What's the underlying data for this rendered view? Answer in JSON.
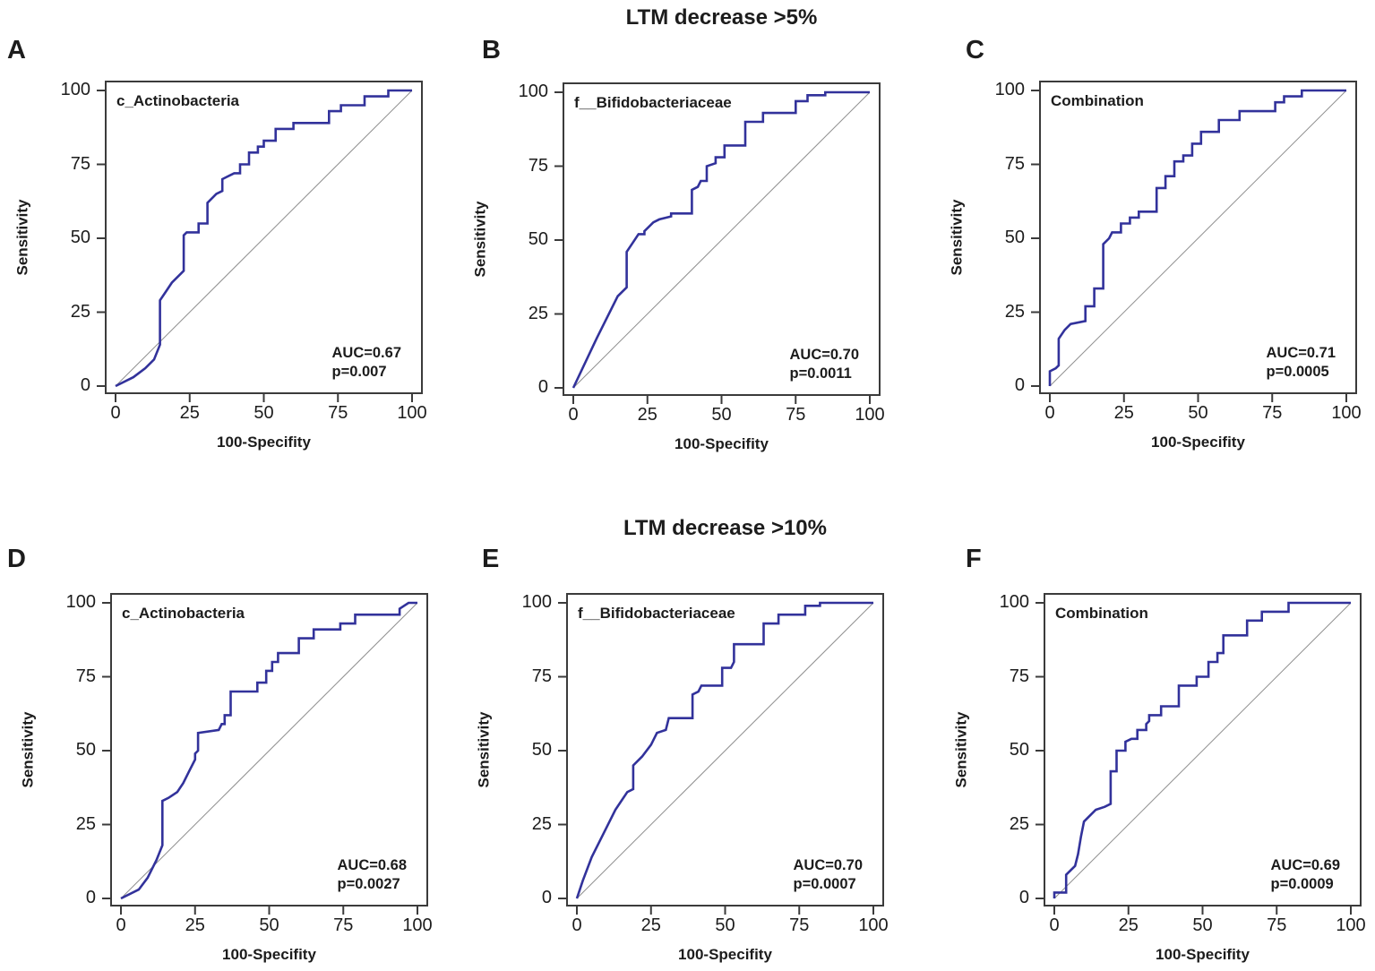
{
  "figure": {
    "row_titles": [
      "LTM decrease >5%",
      "LTM decrease >10%"
    ],
    "styles": {
      "background": "#ffffff",
      "curve_color": "#32329b",
      "diagonal_color": "#8f8f8f",
      "frame_color": "#3b3b3b",
      "text_color": "#1c1c1c"
    }
  },
  "chart_data": [
    {
      "type": "line",
      "panel_label": "A",
      "row_title": "LTM decrease >5%",
      "label": "c_Actinobacteria",
      "auc": 0.67,
      "p_value": 0.007,
      "auc_text": "AUC=0.67",
      "p_text": "p=0.007",
      "xlabel": "100-Specifity",
      "ylabel": "Sensitivity",
      "xlim": [
        0,
        100
      ],
      "ylim": [
        0,
        100
      ],
      "xticks": [
        0,
        25,
        50,
        75,
        100
      ],
      "yticks": [
        0,
        25,
        50,
        75,
        100
      ],
      "diagonal_reference": true,
      "roc_points": [
        [
          0,
          0
        ],
        [
          6,
          3
        ],
        [
          10,
          6
        ],
        [
          13,
          9
        ],
        [
          15,
          14
        ],
        [
          15,
          29
        ],
        [
          17,
          32
        ],
        [
          19,
          35
        ],
        [
          23,
          39
        ],
        [
          23,
          51
        ],
        [
          24,
          52
        ],
        [
          28,
          52
        ],
        [
          28,
          55
        ],
        [
          31,
          55
        ],
        [
          31,
          62
        ],
        [
          34,
          65
        ],
        [
          36,
          66
        ],
        [
          36,
          70
        ],
        [
          40,
          72
        ],
        [
          42,
          72
        ],
        [
          42,
          75
        ],
        [
          45,
          75
        ],
        [
          45,
          79
        ],
        [
          48,
          79
        ],
        [
          48,
          81
        ],
        [
          50,
          81
        ],
        [
          50,
          83
        ],
        [
          54,
          83
        ],
        [
          54,
          87
        ],
        [
          60,
          87
        ],
        [
          60,
          89
        ],
        [
          72,
          89
        ],
        [
          72,
          93
        ],
        [
          76,
          93
        ],
        [
          76,
          95
        ],
        [
          84,
          95
        ],
        [
          84,
          98
        ],
        [
          92,
          98
        ],
        [
          92,
          100
        ],
        [
          100,
          100
        ]
      ]
    },
    {
      "type": "line",
      "panel_label": "B",
      "row_title": "LTM decrease >5%",
      "label": "f__Bifidobacteriaceae",
      "auc": 0.7,
      "p_value": 0.0011,
      "auc_text": "AUC=0.70",
      "p_text": "p=0.0011",
      "xlabel": "100-Specifity",
      "ylabel": "Sensitivity",
      "xlim": [
        0,
        100
      ],
      "ylim": [
        0,
        100
      ],
      "xticks": [
        0,
        25,
        50,
        75,
        100
      ],
      "yticks": [
        0,
        25,
        50,
        75,
        100
      ],
      "diagonal_reference": true,
      "roc_points": [
        [
          0,
          0
        ],
        [
          8,
          17
        ],
        [
          15,
          31
        ],
        [
          17,
          33
        ],
        [
          18,
          34
        ],
        [
          18,
          46
        ],
        [
          20,
          49
        ],
        [
          22,
          52
        ],
        [
          24,
          52
        ],
        [
          24,
          53
        ],
        [
          27,
          56
        ],
        [
          29,
          57
        ],
        [
          33,
          58
        ],
        [
          33,
          59
        ],
        [
          40,
          59
        ],
        [
          40,
          67
        ],
        [
          42,
          68
        ],
        [
          43,
          70
        ],
        [
          45,
          70
        ],
        [
          45,
          75
        ],
        [
          48,
          76
        ],
        [
          48,
          78
        ],
        [
          51,
          78
        ],
        [
          51,
          82
        ],
        [
          54,
          82
        ],
        [
          58,
          82
        ],
        [
          58,
          90
        ],
        [
          64,
          90
        ],
        [
          64,
          93
        ],
        [
          75,
          93
        ],
        [
          75,
          97
        ],
        [
          79,
          97
        ],
        [
          79,
          99
        ],
        [
          85,
          99
        ],
        [
          85,
          100
        ],
        [
          100,
          100
        ]
      ]
    },
    {
      "type": "line",
      "panel_label": "C",
      "row_title": "LTM decrease >5%",
      "label": "Combination",
      "auc": 0.71,
      "p_value": 0.0005,
      "auc_text": "AUC=0.71",
      "p_text": "p=0.0005",
      "xlabel": "100-Specifity",
      "ylabel": "Sensitivity",
      "xlim": [
        0,
        100
      ],
      "ylim": [
        0,
        100
      ],
      "xticks": [
        0,
        25,
        50,
        75,
        100
      ],
      "yticks": [
        0,
        25,
        50,
        75,
        100
      ],
      "diagonal_reference": true,
      "roc_points": [
        [
          0,
          0
        ],
        [
          0,
          5
        ],
        [
          2,
          6
        ],
        [
          3,
          7
        ],
        [
          3,
          16
        ],
        [
          5,
          19
        ],
        [
          7,
          21
        ],
        [
          12,
          22
        ],
        [
          12,
          27
        ],
        [
          15,
          27
        ],
        [
          15,
          33
        ],
        [
          18,
          33
        ],
        [
          18,
          48
        ],
        [
          20,
          50
        ],
        [
          21,
          52
        ],
        [
          24,
          52
        ],
        [
          24,
          55
        ],
        [
          27,
          55
        ],
        [
          27,
          57
        ],
        [
          30,
          57
        ],
        [
          30,
          59
        ],
        [
          36,
          59
        ],
        [
          36,
          67
        ],
        [
          39,
          67
        ],
        [
          39,
          71
        ],
        [
          42,
          71
        ],
        [
          42,
          76
        ],
        [
          45,
          76
        ],
        [
          45,
          78
        ],
        [
          48,
          78
        ],
        [
          48,
          82
        ],
        [
          51,
          82
        ],
        [
          51,
          86
        ],
        [
          57,
          86
        ],
        [
          57,
          90
        ],
        [
          64,
          90
        ],
        [
          64,
          93
        ],
        [
          76,
          93
        ],
        [
          76,
          96
        ],
        [
          79,
          96
        ],
        [
          79,
          98
        ],
        [
          85,
          98
        ],
        [
          85,
          100
        ],
        [
          100,
          100
        ]
      ]
    },
    {
      "type": "line",
      "panel_label": "D",
      "row_title": "LTM decrease >10%",
      "label": "c_Actinobacteria",
      "auc": 0.68,
      "p_value": 0.0027,
      "auc_text": "AUC=0.68",
      "p_text": "p=0.0027",
      "xlabel": "100-Specifity",
      "ylabel": "Sensitivity",
      "xlim": [
        0,
        100
      ],
      "ylim": [
        0,
        100
      ],
      "xticks": [
        0,
        25,
        50,
        75,
        100
      ],
      "yticks": [
        0,
        25,
        50,
        75,
        100
      ],
      "diagonal_reference": true,
      "roc_points": [
        [
          0,
          0
        ],
        [
          6,
          3
        ],
        [
          9,
          7
        ],
        [
          12,
          13
        ],
        [
          14,
          18
        ],
        [
          14,
          33
        ],
        [
          16,
          34
        ],
        [
          19,
          36
        ],
        [
          21,
          39
        ],
        [
          23,
          43
        ],
        [
          25,
          47
        ],
        [
          25,
          49
        ],
        [
          26,
          50
        ],
        [
          26,
          56
        ],
        [
          33,
          57
        ],
        [
          34,
          59
        ],
        [
          35,
          59
        ],
        [
          35,
          62
        ],
        [
          37,
          62
        ],
        [
          37,
          70
        ],
        [
          46,
          70
        ],
        [
          46,
          73
        ],
        [
          49,
          73
        ],
        [
          49,
          77
        ],
        [
          51,
          77
        ],
        [
          51,
          80
        ],
        [
          53,
          80
        ],
        [
          53,
          83
        ],
        [
          60,
          83
        ],
        [
          60,
          88
        ],
        [
          65,
          88
        ],
        [
          65,
          91
        ],
        [
          74,
          91
        ],
        [
          74,
          93
        ],
        [
          79,
          93
        ],
        [
          79,
          96
        ],
        [
          94,
          96
        ],
        [
          94,
          98
        ],
        [
          97,
          100
        ],
        [
          100,
          100
        ]
      ]
    },
    {
      "type": "line",
      "panel_label": "E",
      "row_title": "LTM decrease >10%",
      "label": "f__Bifidobacteriaceae",
      "auc": 0.7,
      "p_value": 0.0007,
      "auc_text": "AUC=0.70",
      "p_text": "p=0.0007",
      "xlabel": "100-Specifity",
      "ylabel": "Sensitivity",
      "xlim": [
        0,
        100
      ],
      "ylim": [
        0,
        100
      ],
      "xticks": [
        0,
        25,
        50,
        75,
        100
      ],
      "yticks": [
        0,
        25,
        50,
        75,
        100
      ],
      "diagonal_reference": true,
      "roc_points": [
        [
          0,
          0
        ],
        [
          2,
          6
        ],
        [
          5,
          14
        ],
        [
          9,
          22
        ],
        [
          13,
          30
        ],
        [
          17,
          36
        ],
        [
          19,
          37
        ],
        [
          19,
          45
        ],
        [
          22,
          48
        ],
        [
          25,
          52
        ],
        [
          26,
          54
        ],
        [
          27,
          56
        ],
        [
          30,
          57
        ],
        [
          31,
          61
        ],
        [
          39,
          61
        ],
        [
          39,
          69
        ],
        [
          41,
          70
        ],
        [
          42,
          72
        ],
        [
          49,
          72
        ],
        [
          49,
          78
        ],
        [
          52,
          78
        ],
        [
          53,
          80
        ],
        [
          53,
          86
        ],
        [
          63,
          86
        ],
        [
          63,
          93
        ],
        [
          68,
          93
        ],
        [
          68,
          96
        ],
        [
          77,
          96
        ],
        [
          77,
          99
        ],
        [
          82,
          99
        ],
        [
          82,
          100
        ],
        [
          100,
          100
        ]
      ]
    },
    {
      "type": "line",
      "panel_label": "F",
      "row_title": "LTM decrease >10%",
      "label": "Combination",
      "auc": 0.69,
      "p_value": 0.0009,
      "auc_text": "AUC=0.69",
      "p_text": "p=0.0009",
      "xlabel": "100-Specifity",
      "ylabel": "Sensitivity",
      "xlim": [
        0,
        100
      ],
      "ylim": [
        0,
        100
      ],
      "xticks": [
        0,
        25,
        50,
        75,
        100
      ],
      "yticks": [
        0,
        25,
        50,
        75,
        100
      ],
      "diagonal_reference": true,
      "roc_points": [
        [
          0,
          0
        ],
        [
          0,
          2
        ],
        [
          4,
          2
        ],
        [
          4,
          8
        ],
        [
          7,
          11
        ],
        [
          8,
          15
        ],
        [
          9,
          21
        ],
        [
          10,
          26
        ],
        [
          12,
          28
        ],
        [
          14,
          30
        ],
        [
          17,
          31
        ],
        [
          19,
          32
        ],
        [
          19,
          43
        ],
        [
          21,
          43
        ],
        [
          21,
          50
        ],
        [
          24,
          50
        ],
        [
          24,
          53
        ],
        [
          26,
          54
        ],
        [
          28,
          54
        ],
        [
          28,
          57
        ],
        [
          31,
          57
        ],
        [
          31,
          59
        ],
        [
          32,
          60
        ],
        [
          32,
          62
        ],
        [
          36,
          62
        ],
        [
          36,
          65
        ],
        [
          42,
          65
        ],
        [
          42,
          72
        ],
        [
          48,
          72
        ],
        [
          48,
          75
        ],
        [
          52,
          75
        ],
        [
          52,
          80
        ],
        [
          55,
          80
        ],
        [
          55,
          83
        ],
        [
          57,
          83
        ],
        [
          57,
          89
        ],
        [
          65,
          89
        ],
        [
          65,
          94
        ],
        [
          70,
          94
        ],
        [
          70,
          97
        ],
        [
          79,
          97
        ],
        [
          79,
          100
        ],
        [
          84,
          100
        ],
        [
          100,
          100
        ]
      ]
    }
  ]
}
